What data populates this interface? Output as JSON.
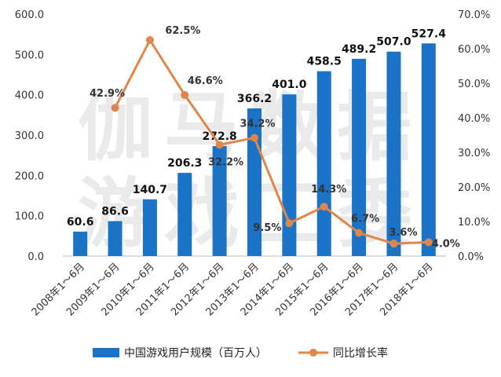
{
  "chart_data": {
    "type": "bar",
    "categories": [
      "2008年1～6月",
      "2009年1～6月",
      "2010年1～6月",
      "2011年1～6月",
      "2012年1～6月",
      "2013年1～6月",
      "2014年1～6月",
      "2015年1～6月",
      "2016年1～6月",
      "2017年1～6月",
      "2018年1～6月"
    ],
    "series": [
      {
        "name": "中国游戏用户规模（百万人）",
        "type": "bar",
        "axis": "left",
        "values": [
          60.6,
          86.6,
          140.7,
          206.3,
          272.8,
          366.2,
          401.0,
          458.5,
          489.2,
          507.0,
          527.4
        ],
        "labels": [
          "60.6",
          "86.6",
          "140.7",
          "206.3",
          "272.8",
          "366.2",
          "401.0",
          "458.5",
          "489.2",
          "507.0",
          "527.4"
        ]
      },
      {
        "name": "同比增长率",
        "type": "line",
        "axis": "right",
        "values": [
          null,
          42.9,
          62.5,
          46.6,
          32.2,
          34.2,
          9.5,
          14.3,
          6.7,
          3.6,
          4.0
        ],
        "labels": [
          "",
          "42.9%",
          "62.5%",
          "46.6%",
          "32.2%",
          "34.2%",
          "9.5%",
          "14.3%",
          "6.7%",
          "3.6%",
          "4.0%"
        ]
      }
    ],
    "ylim": [
      0,
      600
    ],
    "y_ticks": [
      "0.0",
      "100.0",
      "200.0",
      "300.0",
      "400.0",
      "500.0",
      "600.0"
    ],
    "y2lim": [
      0,
      70
    ],
    "y2_ticks": [
      "0.0%",
      "10.0%",
      "20.0%",
      "30.0%",
      "40.0%",
      "50.0%",
      "60.0%",
      "70.0%"
    ],
    "legend_position": "bottom",
    "grid": false,
    "colors": {
      "bar": "#1a73c6",
      "line": "#e0864a"
    },
    "watermark": [
      "伽马数据",
      "游戏工委"
    ]
  }
}
